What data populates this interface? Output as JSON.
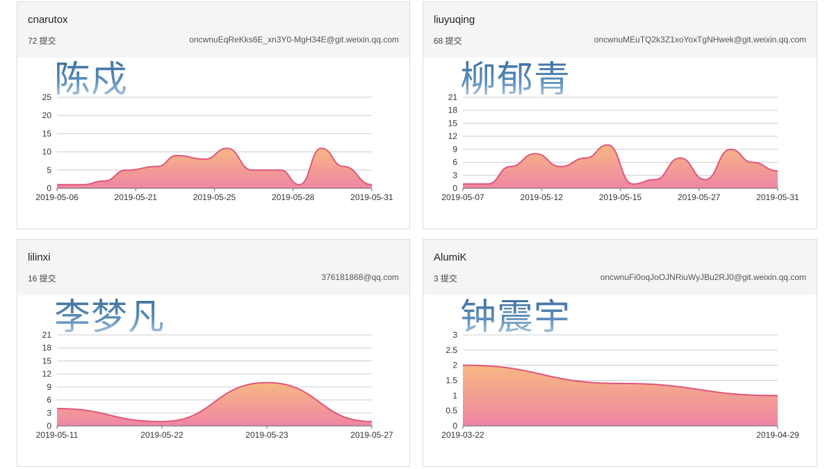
{
  "cards": [
    {
      "name": "cnarutox",
      "commits": "72 提交",
      "email": "oncwnuEqReKks6E_xn3Y0-MgH34E@git.weixin.qq.com",
      "overlay": "陈戍",
      "chart_data": {
        "type": "area",
        "ylim": [
          0,
          25
        ],
        "yticks": [
          0,
          5,
          10,
          15,
          20,
          25
        ],
        "xtick_labels": [
          "2019-05-06",
          "2019-05-21",
          "2019-05-25",
          "2019-05-28",
          "2019-05-31"
        ],
        "points": [
          [
            0,
            1
          ],
          [
            0.08,
            1
          ],
          [
            0.15,
            2
          ],
          [
            0.22,
            5
          ],
          [
            0.32,
            6
          ],
          [
            0.38,
            9
          ],
          [
            0.47,
            8
          ],
          [
            0.54,
            11
          ],
          [
            0.62,
            5
          ],
          [
            0.71,
            5
          ],
          [
            0.77,
            1
          ],
          [
            0.84,
            11
          ],
          [
            0.91,
            6
          ],
          [
            1.0,
            1
          ]
        ]
      }
    },
    {
      "name": "liuyuqing",
      "commits": "68 提交",
      "email": "oncwnuMEuTQ2k3Z1xoYoxTgNHwek@git.weixin.qq.com",
      "overlay": "柳郁青",
      "chart_data": {
        "type": "area",
        "ylim": [
          0,
          21
        ],
        "yticks": [
          0,
          3,
          6,
          9,
          12,
          15,
          18,
          21
        ],
        "xtick_labels": [
          "2019-05-07",
          "2019-05-12",
          "2019-05-15",
          "2019-05-27",
          "2019-05-31"
        ],
        "points": [
          [
            0,
            1
          ],
          [
            0.08,
            1
          ],
          [
            0.15,
            5
          ],
          [
            0.23,
            8
          ],
          [
            0.31,
            5
          ],
          [
            0.39,
            7
          ],
          [
            0.46,
            10
          ],
          [
            0.54,
            1
          ],
          [
            0.61,
            2
          ],
          [
            0.69,
            7
          ],
          [
            0.77,
            2
          ],
          [
            0.85,
            9
          ],
          [
            0.92,
            6
          ],
          [
            1.0,
            4
          ]
        ]
      }
    },
    {
      "name": "lilinxi",
      "commits": "16 提交",
      "email": "376181868@qq.com",
      "overlay": "李梦凡",
      "chart_data": {
        "type": "area",
        "ylim": [
          0,
          21
        ],
        "yticks": [
          0,
          3,
          6,
          9,
          12,
          15,
          18,
          21
        ],
        "xtick_labels": [
          "2019-05-11",
          "2019-05-22",
          "2019-05-23",
          "2019-05-27"
        ],
        "points": [
          [
            0,
            4
          ],
          [
            0.333,
            1
          ],
          [
            0.667,
            10
          ],
          [
            1.0,
            1
          ]
        ]
      }
    },
    {
      "name": "AlumiK",
      "commits": "3 提交",
      "email": "oncwnuFi0oqJoOJNRiuWyJBu2RJ0@git.weixin.qq.com",
      "overlay": "钟震宇",
      "chart_data": {
        "type": "area",
        "ylim": [
          0,
          3
        ],
        "yticks": [
          0,
          0.5,
          1,
          1.5,
          2,
          2.5,
          3
        ],
        "xtick_labels": [
          "2019-03-22",
          "2019-04-29"
        ],
        "points": [
          [
            0,
            2
          ],
          [
            0.5,
            1.4
          ],
          [
            1.0,
            1
          ]
        ]
      }
    }
  ],
  "colors": {
    "line": "#e0567a",
    "fill_top": "#f6b47c",
    "fill_bottom": "#ee7fa0",
    "grid": "#cccccc",
    "axis": "#666666"
  }
}
